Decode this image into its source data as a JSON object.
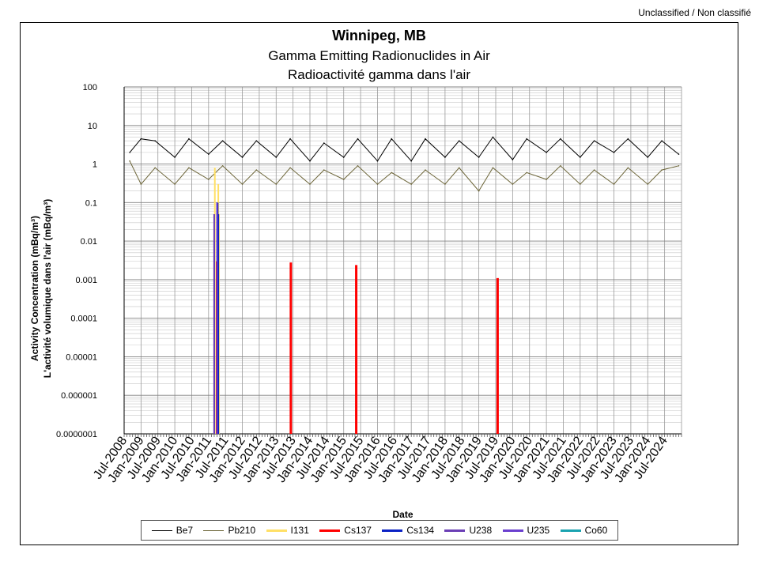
{
  "classification": "Unclassified / Non classifié",
  "chart_data": {
    "type": "line",
    "title": "Winnipeg, MB",
    "subtitle_en": "Gamma Emitting Radionuclides in Air",
    "subtitle_fr": "Radioactivité gamma dans l'air",
    "xlabel": "Date",
    "ylabel_en": "Activity Concentration  (mBq/m³)",
    "ylabel_fr": "L'activité volumique dans l'air (mBq/m³)",
    "yscale": "log",
    "ylim": [
      1e-07,
      100
    ],
    "y_tick_labels": [
      "100",
      "10",
      "1",
      "0.1",
      "0.01",
      "0.001",
      "0.0001",
      "0.00001",
      "0.000001",
      "0.0000001"
    ],
    "xlim": [
      "2008-07",
      "2025-01"
    ],
    "x_tick_labels": [
      "Jul-2008",
      "Jan-2009",
      "Jul-2009",
      "Jan-2010",
      "Jul-2010",
      "Jan-2011",
      "Jul-2011",
      "Jan-2012",
      "Jul-2012",
      "Jan-2013",
      "Jul-2013",
      "Jan-2014",
      "Jul-2014",
      "Jan-2015",
      "Jul-2015",
      "Jan-2016",
      "Jul-2016",
      "Jan-2017",
      "Jul-2017",
      "Jan-2018",
      "Jul-2018",
      "Jan-2019",
      "Jul-2019",
      "Jan-2020",
      "Jul-2020",
      "Jan-2021",
      "Jul-2021",
      "Jan-2022",
      "Jul-2022",
      "Jan-2023",
      "Jul-2023",
      "Jan-2024",
      "Jul-2024"
    ],
    "grid": true,
    "legend_position": "bottom",
    "series": [
      {
        "name": "Be7",
        "color": "#000000",
        "x": [
          "2008-09",
          "2009-01",
          "2009-06",
          "2010-01",
          "2010-06",
          "2011-01",
          "2011-06",
          "2012-01",
          "2012-06",
          "2013-01",
          "2013-06",
          "2014-01",
          "2014-06",
          "2015-01",
          "2015-06",
          "2016-01",
          "2016-06",
          "2017-01",
          "2017-06",
          "2018-01",
          "2018-06",
          "2019-01",
          "2019-06",
          "2020-01",
          "2020-06",
          "2021-01",
          "2021-06",
          "2022-01",
          "2022-06",
          "2023-01",
          "2023-06",
          "2024-01",
          "2024-06",
          "2024-12"
        ],
        "values": [
          2.0,
          4.5,
          4.0,
          1.5,
          4.5,
          1.8,
          4.0,
          1.5,
          4.0,
          1.5,
          4.5,
          1.2,
          3.5,
          1.5,
          4.5,
          1.2,
          4.5,
          1.2,
          4.5,
          1.5,
          4.0,
          1.5,
          5.0,
          1.3,
          4.5,
          2.0,
          4.5,
          1.5,
          4.0,
          2.0,
          4.5,
          1.5,
          4.0,
          1.8
        ]
      },
      {
        "name": "Pb210",
        "color": "#6b6437",
        "x": [
          "2008-09",
          "2009-01",
          "2009-06",
          "2010-01",
          "2010-06",
          "2011-01",
          "2011-06",
          "2012-01",
          "2012-06",
          "2013-01",
          "2013-06",
          "2014-01",
          "2014-06",
          "2015-01",
          "2015-06",
          "2016-01",
          "2016-06",
          "2017-01",
          "2017-06",
          "2018-01",
          "2018-06",
          "2019-01",
          "2019-06",
          "2020-01",
          "2020-06",
          "2021-01",
          "2021-06",
          "2022-01",
          "2022-06",
          "2023-01",
          "2023-06",
          "2024-01",
          "2024-06",
          "2024-12"
        ],
        "values": [
          1.2,
          0.3,
          0.8,
          0.3,
          0.8,
          0.4,
          0.9,
          0.3,
          0.7,
          0.3,
          0.8,
          0.3,
          0.7,
          0.4,
          0.9,
          0.3,
          0.6,
          0.3,
          0.7,
          0.3,
          0.8,
          0.2,
          0.8,
          0.3,
          0.6,
          0.4,
          0.9,
          0.3,
          0.7,
          0.3,
          0.8,
          0.3,
          0.7,
          0.9
        ]
      },
      {
        "name": "I131",
        "color": "#ffe066",
        "x": [
          "2011-03",
          "2011-03",
          "2011-04",
          "2011-04"
        ],
        "values": [
          0.05,
          0.8,
          0.3,
          0.05
        ]
      },
      {
        "name": "Cs137",
        "color": "#ff0000",
        "x": [
          "2011-04",
          "2013-06",
          "2015-05",
          "2019-07"
        ],
        "values": [
          0.003,
          0.0028,
          0.0024,
          0.0011
        ]
      },
      {
        "name": "Cs134",
        "color": "#0a21c4",
        "x": [
          "2011-03",
          "2011-04",
          "2011-04"
        ],
        "values": [
          0.01,
          0.1,
          0.05
        ]
      },
      {
        "name": "U238",
        "color": "#6b3fb5",
        "x": [
          "2011-03"
        ],
        "values": [
          0.05
        ]
      },
      {
        "name": "U235",
        "color": "#6a3fcf",
        "x": [
          "2011-04"
        ],
        "values": [
          0.1
        ]
      },
      {
        "name": "Co60",
        "color": "#1aa3b0",
        "x": [],
        "values": []
      }
    ]
  }
}
